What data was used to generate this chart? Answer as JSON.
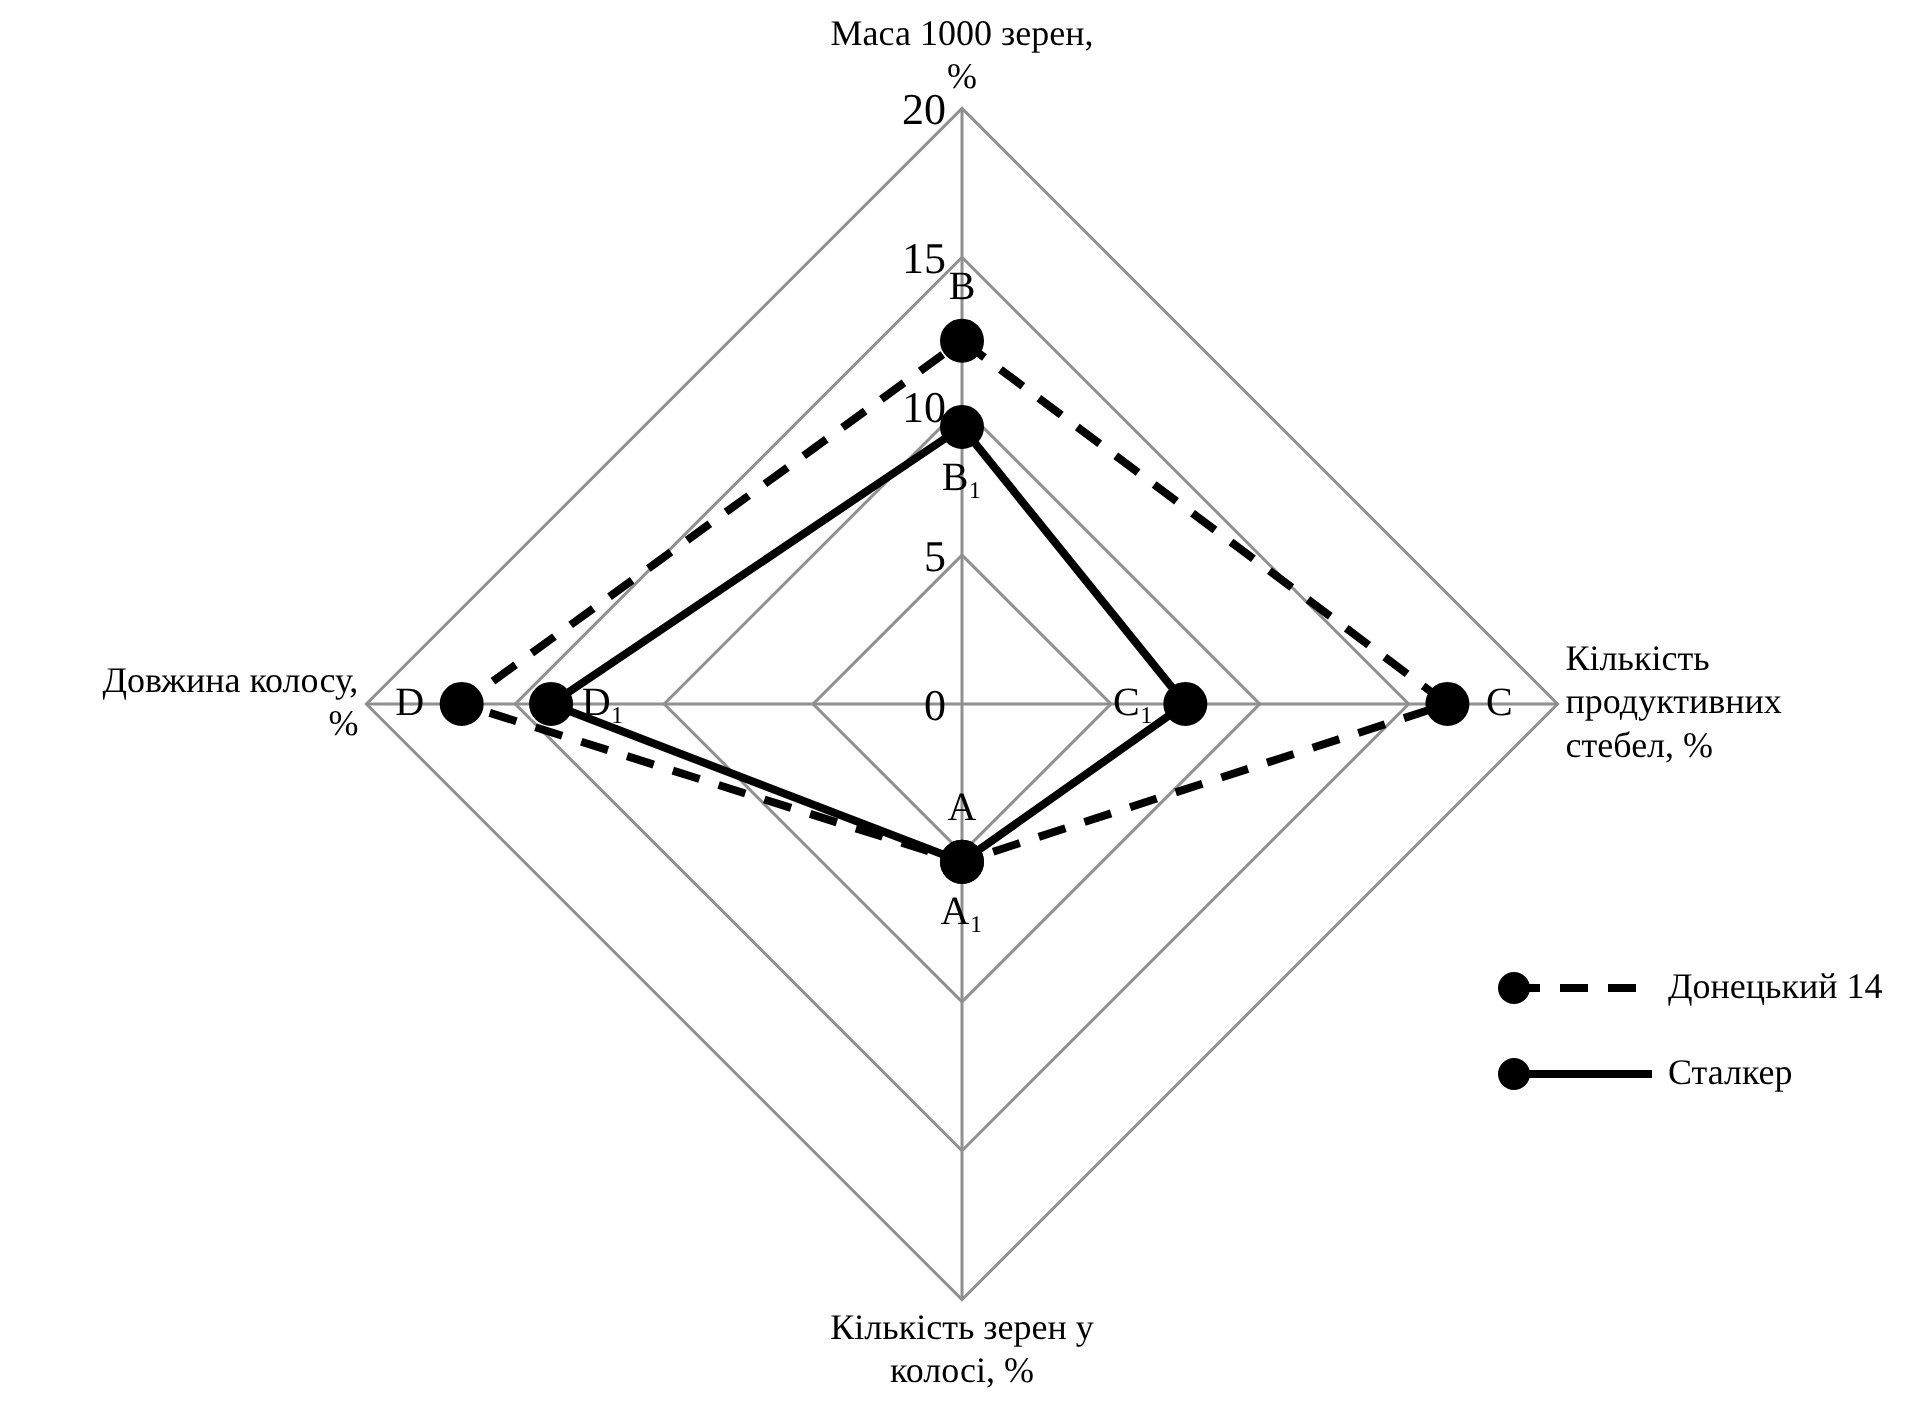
{
  "chart_data": {
    "type": "radar",
    "categories": [
      "Маса 1000 зерен, %",
      "Кількість продуктивних стебел, %",
      "Кількість зерен у колосі, %",
      "Довжина колосу, %"
    ],
    "series": [
      {
        "name": "Донецький 14",
        "color": "#000000",
        "line_style": "dashed",
        "values": [
          12.2,
          16.3,
          5.3,
          16.8
        ],
        "value_labels": [
          "B",
          "C",
          "A",
          "D"
        ]
      },
      {
        "name": "Сталкер",
        "color": "#000000",
        "line_style": "solid",
        "values": [
          9.3,
          7.5,
          5.3,
          13.8
        ],
        "value_labels": [
          "B₁",
          "C₁",
          "A₁",
          "D₁"
        ]
      }
    ],
    "ylim": [
      0,
      20
    ],
    "yticks": [
      0,
      5,
      10,
      15,
      20
    ],
    "grid": true,
    "marker": "circle",
    "legend": "right"
  }
}
